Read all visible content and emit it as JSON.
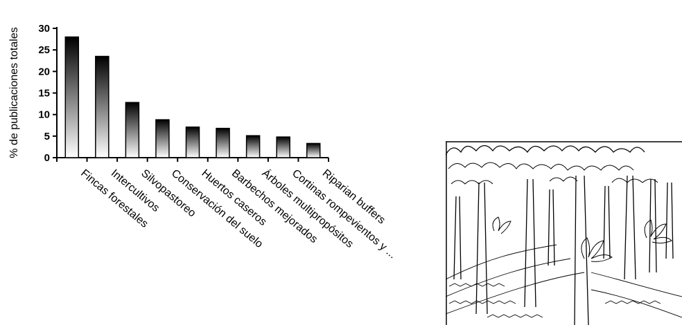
{
  "chart_data": {
    "type": "bar",
    "ylabel": "% de publicaciones totales",
    "xlabel": "",
    "title": "",
    "ylim": [
      0,
      30
    ],
    "yticks": [
      0,
      5,
      10,
      15,
      20,
      25,
      30
    ],
    "categories": [
      "Fincas forestales",
      "Intercultivos",
      "Silvopastoreo",
      "Conservación del suelo",
      "Huertos caseros",
      "Barbechos mejorados",
      "Árboles multipropósitos",
      "Cortinas rompevientos y ...",
      "Riparian buffers"
    ],
    "values": [
      28,
      23.5,
      12.8,
      8.8,
      7.1,
      6.8,
      5.1,
      4.8,
      3.3
    ],
    "bar_fill": "vertical gradient from black (top) to white (bottom)",
    "grid": false,
    "legend": "none"
  },
  "illustration": {
    "subject": "line drawing of a multistrata agroforestry plot"
  }
}
